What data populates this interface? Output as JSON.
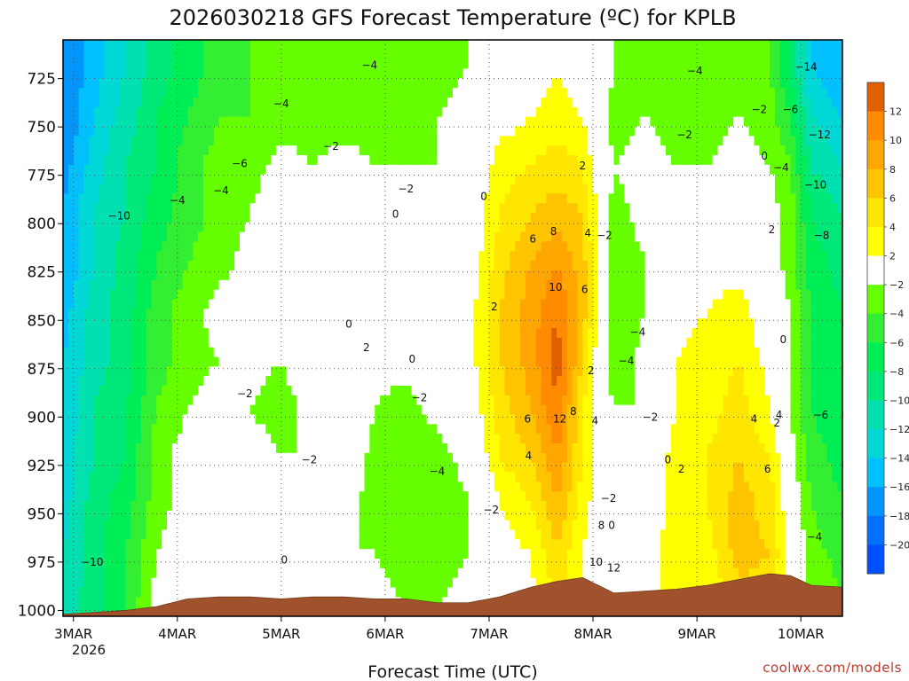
{
  "chart_data": {
    "type": "heatmap",
    "title": "2026030218 GFS Forecast Temperature (ºC) for KPLB",
    "xlabel": "Forecast Time (UTC)",
    "ylabel": "",
    "credit": "coolwx.com/models",
    "x_ticks": [
      "3MAR",
      "4MAR",
      "5MAR",
      "6MAR",
      "7MAR",
      "8MAR",
      "9MAR",
      "10MAR"
    ],
    "x_year": "2026",
    "y_ticks": [
      725,
      750,
      775,
      800,
      825,
      850,
      875,
      900,
      925,
      950,
      975,
      1000
    ],
    "ylim": [
      1003,
      705
    ],
    "xlim": [
      0,
      7.5
    ],
    "colorbar": {
      "levels": [
        12,
        10,
        8,
        6,
        4,
        2,
        -2,
        -4,
        -6,
        -8,
        -10,
        -12,
        -14,
        -16,
        -18,
        -20
      ],
      "colors": [
        "#e05f00",
        "#ff8b00",
        "#ffa600",
        "#ffc400",
        "#ffe600",
        "#ffff00",
        "#ffffff",
        "#66ff00",
        "#33ee33",
        "#00ee55",
        "#00e87a",
        "#00e0b0",
        "#00d8d8",
        "#00c0ff",
        "#0095ff",
        "#0070ff",
        "#0050ff"
      ]
    },
    "profiles": [
      {
        "x": 0.0,
        "ground": 1002,
        "t": [
          -18,
          -18,
          -17,
          -16,
          -16,
          -15,
          -14,
          -14,
          -13,
          -13,
          -12,
          -11
        ]
      },
      {
        "x": 0.3,
        "ground": 1001,
        "t": [
          -15,
          -14,
          -13,
          -12,
          -12,
          -11,
          -11,
          -10,
          -10,
          -9,
          -9,
          -9
        ]
      },
      {
        "x": 0.6,
        "ground": 1000,
        "t": [
          -12,
          -11,
          -10,
          -10,
          -9,
          -9,
          -9,
          -8,
          -8,
          -7,
          -6,
          -6
        ]
      },
      {
        "x": 0.9,
        "ground": 998,
        "t": [
          -9,
          -8,
          -8,
          -7,
          -6,
          -5,
          -5,
          -4,
          -3,
          -3,
          -2,
          -1
        ]
      },
      {
        "x": 1.2,
        "ground": 994,
        "t": [
          -7,
          -6,
          -5,
          -5,
          -4,
          -3,
          -3,
          -2,
          -1,
          -1,
          0,
          0
        ]
      },
      {
        "x": 1.5,
        "ground": 993,
        "t": [
          -5,
          -4,
          -3,
          -3,
          -3,
          -1,
          -2,
          -1,
          -1,
          0,
          0,
          1
        ]
      },
      {
        "x": 1.8,
        "ground": 993,
        "t": [
          -4,
          -4,
          -3,
          -2,
          -1,
          -1,
          -1,
          -2,
          -1,
          0,
          1,
          2
        ]
      },
      {
        "x": 2.1,
        "ground": 994,
        "t": [
          -4,
          -3,
          -1,
          0,
          0,
          -1,
          -2,
          -3,
          -2,
          -1,
          0,
          1
        ]
      },
      {
        "x": 2.4,
        "ground": 993,
        "t": [
          -4,
          -3,
          -2,
          -1,
          -1,
          -1,
          0,
          -1,
          -2,
          -1,
          0,
          1
        ]
      },
      {
        "x": 2.7,
        "ground": 993,
        "t": [
          -3,
          -3,
          -1,
          -1,
          0,
          1,
          2,
          2,
          1,
          -1,
          -2,
          -1
        ]
      },
      {
        "x": 3.0,
        "ground": 994,
        "t": [
          -4,
          -3,
          -2,
          -1,
          -1,
          0,
          -1,
          -2,
          -3,
          -3,
          -2,
          -1
        ]
      },
      {
        "x": 3.3,
        "ground": 994,
        "t": [
          -4,
          -3,
          -2,
          -1,
          -1,
          0,
          -1,
          -3,
          -4,
          -4,
          -3,
          -2
        ]
      },
      {
        "x": 3.6,
        "ground": 996,
        "t": [
          -3,
          -2,
          -2,
          -1,
          0,
          0,
          0,
          -1,
          -3,
          -4,
          -3,
          -2
        ]
      },
      {
        "x": 3.9,
        "ground": 996,
        "t": [
          -2,
          -1,
          -1,
          0,
          0,
          1,
          1,
          0,
          -1,
          -2,
          -2,
          -1
        ]
      },
      {
        "x": 4.2,
        "ground": 993,
        "t": [
          0,
          1,
          3,
          4,
          5,
          6,
          6,
          5,
          4,
          2,
          1,
          0
        ]
      },
      {
        "x": 4.5,
        "ground": 988,
        "t": [
          1,
          2,
          4,
          6,
          8,
          9,
          9,
          8,
          6,
          4,
          2,
          1
        ]
      },
      {
        "x": 4.75,
        "ground": 985,
        "t": [
          2,
          3,
          5,
          7,
          10,
          12,
          13,
          12,
          10,
          8,
          6,
          4
        ]
      },
      {
        "x": 5.0,
        "ground": 983,
        "t": [
          1,
          2,
          4,
          6,
          7,
          7,
          6,
          4,
          4,
          3,
          2,
          2
        ]
      },
      {
        "x": 5.3,
        "ground": 991,
        "t": [
          -2,
          -3,
          -2,
          -3,
          -4,
          -4,
          -4,
          -2,
          -1,
          -1,
          0,
          0
        ]
      },
      {
        "x": 5.6,
        "ground": 990,
        "t": [
          -3,
          -2,
          -1,
          -1,
          -2,
          -2,
          -1,
          -2,
          -1,
          0,
          1,
          2
        ]
      },
      {
        "x": 5.9,
        "ground": 989,
        "t": [
          -3,
          -3,
          -2,
          0,
          0,
          1,
          2,
          2,
          3,
          3,
          3,
          2
        ]
      },
      {
        "x": 6.2,
        "ground": 987,
        "t": [
          -3,
          -3,
          -2,
          -1,
          1,
          2,
          3,
          3,
          4,
          4,
          3,
          2
        ]
      },
      {
        "x": 6.5,
        "ground": 984,
        "t": [
          -2,
          -2,
          -1,
          0,
          1,
          3,
          4,
          5,
          6,
          7,
          7,
          5
        ]
      },
      {
        "x": 6.8,
        "ground": 981,
        "t": [
          -4,
          -3,
          -2,
          -1,
          -1,
          0,
          1,
          2,
          4,
          5,
          6,
          4
        ]
      },
      {
        "x": 7.0,
        "ground": 982,
        "t": [
          -8,
          -6,
          -4,
          -3,
          -3,
          -2,
          -2,
          -2,
          -1,
          0,
          1,
          1
        ]
      },
      {
        "x": 7.2,
        "ground": 987,
        "t": [
          -14,
          -12,
          -10,
          -8,
          -7,
          -6,
          -6,
          -6,
          -5,
          -4,
          -3,
          -2
        ]
      },
      {
        "x": 7.5,
        "ground": 988,
        "t": [
          -16,
          -14,
          -12,
          -10,
          -9,
          -8,
          -8,
          -8,
          -7,
          -6,
          -5,
          -4
        ]
      }
    ],
    "profile_levels": [
      720,
      745,
      770,
      795,
      820,
      845,
      870,
      895,
      920,
      945,
      970,
      1000
    ],
    "contour_labels": [
      {
        "x": 0.28,
        "p": 975,
        "text": "−10"
      },
      {
        "x": 0.54,
        "p": 796,
        "text": "−10"
      },
      {
        "x": 1.1,
        "p": 788,
        "text": "−4"
      },
      {
        "x": 1.52,
        "p": 783,
        "text": "−4"
      },
      {
        "x": 1.7,
        "p": 769,
        "text": "−6"
      },
      {
        "x": 2.1,
        "p": 738,
        "text": "−4"
      },
      {
        "x": 1.75,
        "p": 888,
        "text": "−2"
      },
      {
        "x": 2.58,
        "p": 760,
        "text": "−2"
      },
      {
        "x": 2.37,
        "p": 922,
        "text": "−2"
      },
      {
        "x": 2.95,
        "p": 718,
        "text": "−4"
      },
      {
        "x": 3.3,
        "p": 782,
        "text": "−2"
      },
      {
        "x": 2.13,
        "p": 974,
        "text": "0"
      },
      {
        "x": 2.75,
        "p": 852,
        "text": "0"
      },
      {
        "x": 3.2,
        "p": 795,
        "text": "0"
      },
      {
        "x": 3.36,
        "p": 870,
        "text": "0"
      },
      {
        "x": 3.43,
        "p": 890,
        "text": "−2"
      },
      {
        "x": 2.92,
        "p": 864,
        "text": "2"
      },
      {
        "x": 3.6,
        "p": 928,
        "text": "−4"
      },
      {
        "x": 4.12,
        "p": 948,
        "text": "−2"
      },
      {
        "x": 4.05,
        "p": 786,
        "text": "0"
      },
      {
        "x": 4.15,
        "p": 843,
        "text": "2"
      },
      {
        "x": 4.52,
        "p": 808,
        "text": "6"
      },
      {
        "x": 4.72,
        "p": 804,
        "text": "8"
      },
      {
        "x": 4.74,
        "p": 833,
        "text": "10"
      },
      {
        "x": 4.47,
        "p": 901,
        "text": "6"
      },
      {
        "x": 4.48,
        "p": 920,
        "text": "4"
      },
      {
        "x": 4.78,
        "p": 901,
        "text": "12"
      },
      {
        "x": 4.91,
        "p": 897,
        "text": "8"
      },
      {
        "x": 5.02,
        "p": 834,
        "text": "6"
      },
      {
        "x": 5.0,
        "p": 770,
        "text": "2"
      },
      {
        "x": 5.05,
        "p": 805,
        "text": "4"
      },
      {
        "x": 5.21,
        "p": 806,
        "text": "−2"
      },
      {
        "x": 5.08,
        "p": 876,
        "text": "2"
      },
      {
        "x": 5.12,
        "p": 902,
        "text": "4"
      },
      {
        "x": 5.25,
        "p": 942,
        "text": "−2"
      },
      {
        "x": 5.18,
        "p": 956,
        "text": "8"
      },
      {
        "x": 5.28,
        "p": 956,
        "text": "0"
      },
      {
        "x": 5.13,
        "p": 975,
        "text": "10"
      },
      {
        "x": 5.3,
        "p": 978,
        "text": "12"
      },
      {
        "x": 5.42,
        "p": 871,
        "text": "−4"
      },
      {
        "x": 5.53,
        "p": 856,
        "text": "−4"
      },
      {
        "x": 5.65,
        "p": 900,
        "text": "−2"
      },
      {
        "x": 5.82,
        "p": 922,
        "text": "0"
      },
      {
        "x": 5.95,
        "p": 927,
        "text": "2"
      },
      {
        "x": 5.98,
        "p": 754,
        "text": "−2"
      },
      {
        "x": 6.08,
        "p": 721,
        "text": "−4"
      },
      {
        "x": 6.7,
        "p": 741,
        "text": "−2"
      },
      {
        "x": 6.75,
        "p": 765,
        "text": "0"
      },
      {
        "x": 6.82,
        "p": 803,
        "text": "2"
      },
      {
        "x": 6.89,
        "p": 899,
        "text": "4"
      },
      {
        "x": 6.65,
        "p": 901,
        "text": "4"
      },
      {
        "x": 6.78,
        "p": 927,
        "text": "6"
      },
      {
        "x": 6.87,
        "p": 903,
        "text": "2"
      },
      {
        "x": 6.91,
        "p": 771,
        "text": "−4"
      },
      {
        "x": 7.0,
        "p": 741,
        "text": "−6"
      },
      {
        "x": 7.15,
        "p": 719,
        "text": "−14"
      },
      {
        "x": 7.28,
        "p": 754,
        "text": "−12"
      },
      {
        "x": 7.24,
        "p": 780,
        "text": "−10"
      },
      {
        "x": 7.3,
        "p": 806,
        "text": "−8"
      },
      {
        "x": 7.29,
        "p": 899,
        "text": "−6"
      },
      {
        "x": 7.23,
        "p": 962,
        "text": "−4"
      },
      {
        "x": 6.93,
        "p": 860,
        "text": "0"
      }
    ]
  }
}
